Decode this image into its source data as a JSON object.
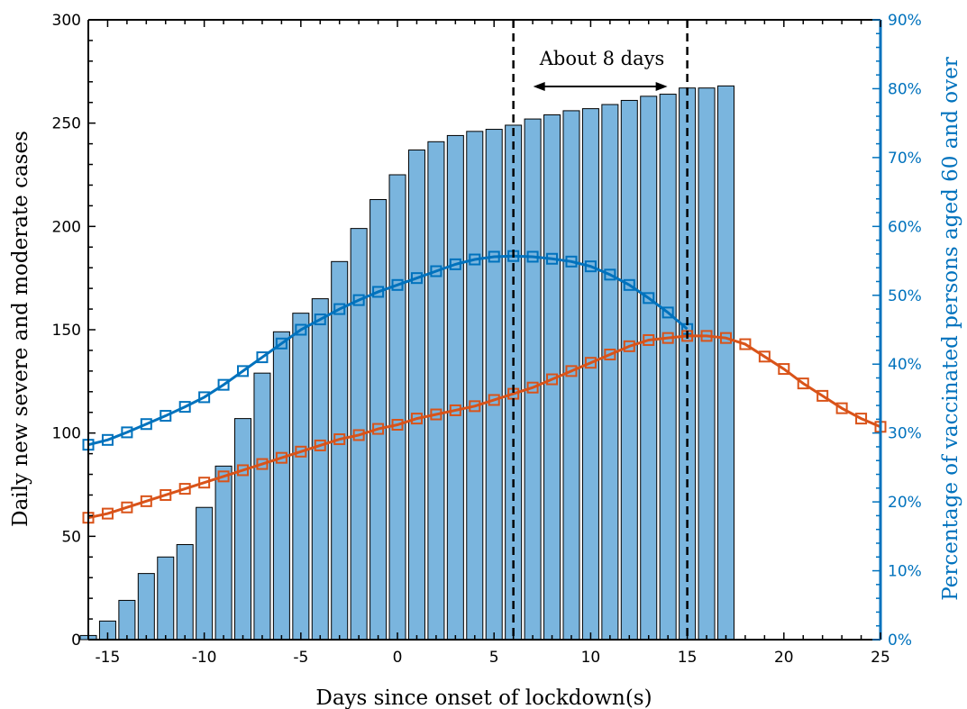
{
  "chart_data": {
    "type": "bar+line",
    "xlabel": "Days since onset of lockdown(s)",
    "ylabel": "Daily new severe and moderate cases",
    "ylabel_right": "Percentage of vaccinated persons aged 60 and over",
    "xlim": [
      -16,
      25
    ],
    "ylim": [
      0,
      300
    ],
    "ylim_right": [
      0,
      90
    ],
    "x_ticks": [
      -15,
      -10,
      -5,
      0,
      5,
      10,
      15,
      20,
      25
    ],
    "y_ticks": [
      0,
      50,
      100,
      150,
      200,
      250,
      300
    ],
    "y_ticks_right": [
      "0%",
      "10%",
      "20%",
      "30%",
      "40%",
      "50%",
      "60%",
      "70%",
      "80%",
      "90%"
    ],
    "annotation": "About 8 days",
    "vlines": [
      6,
      15
    ],
    "bars": {
      "x": [
        -16,
        -15,
        -14,
        -13,
        -12,
        -11,
        -10,
        -9,
        -8,
        -7,
        -6,
        -5,
        -4,
        -3,
        -2,
        -1,
        0,
        1,
        2,
        3,
        4,
        5,
        6,
        7,
        8,
        9,
        10,
        11,
        12,
        13,
        14,
        15,
        16,
        17
      ],
      "values": [
        2,
        9,
        19,
        32,
        40,
        46,
        64,
        84,
        107,
        129,
        149,
        158,
        165,
        183,
        199,
        213,
        225,
        237,
        241,
        244,
        246,
        247,
        249,
        252,
        254,
        256,
        257,
        259,
        261,
        263,
        264,
        267,
        267,
        268
      ],
      "color": "#7AB5DE"
    },
    "series": [
      {
        "axis": "right",
        "color": "#0072BD",
        "x": [
          -16,
          -15,
          -14,
          -13,
          -12,
          -11,
          -10,
          -9,
          -8,
          -7,
          -6,
          -5,
          -4,
          -3,
          -2,
          -1,
          0,
          1,
          2,
          3,
          4,
          5,
          6,
          7,
          8,
          9,
          10,
          11,
          12,
          13,
          14,
          15
        ],
        "values": [
          28.3,
          29.0,
          30.1,
          31.3,
          32.5,
          33.8,
          35.2,
          37.0,
          39.0,
          41.0,
          43.0,
          45.0,
          46.5,
          48.0,
          49.3,
          50.5,
          51.5,
          52.5,
          53.5,
          54.5,
          55.2,
          55.6,
          55.7,
          55.6,
          55.3,
          54.9,
          54.2,
          53.0,
          51.5,
          49.6,
          47.5,
          45.1
        ]
      },
      {
        "axis": "left",
        "color": "#D95319",
        "x": [
          -16,
          -15,
          -14,
          -13,
          -12,
          -11,
          -10,
          -9,
          -8,
          -7,
          -6,
          -5,
          -4,
          -3,
          -2,
          -1,
          0,
          1,
          2,
          3,
          4,
          5,
          6,
          7,
          8,
          9,
          10,
          11,
          12,
          13,
          14,
          15,
          16,
          17,
          18,
          19,
          20,
          21,
          22,
          23,
          24,
          25
        ],
        "values": [
          59,
          61,
          64,
          67,
          70,
          73,
          76,
          79,
          82,
          85,
          88,
          91,
          94,
          97,
          99,
          102,
          104,
          107,
          109,
          111,
          113,
          116,
          119,
          122,
          126,
          130,
          134,
          138,
          142,
          145,
          146,
          147,
          147,
          146,
          143,
          137,
          131,
          124,
          118,
          112,
          107,
          103
        ]
      }
    ]
  }
}
